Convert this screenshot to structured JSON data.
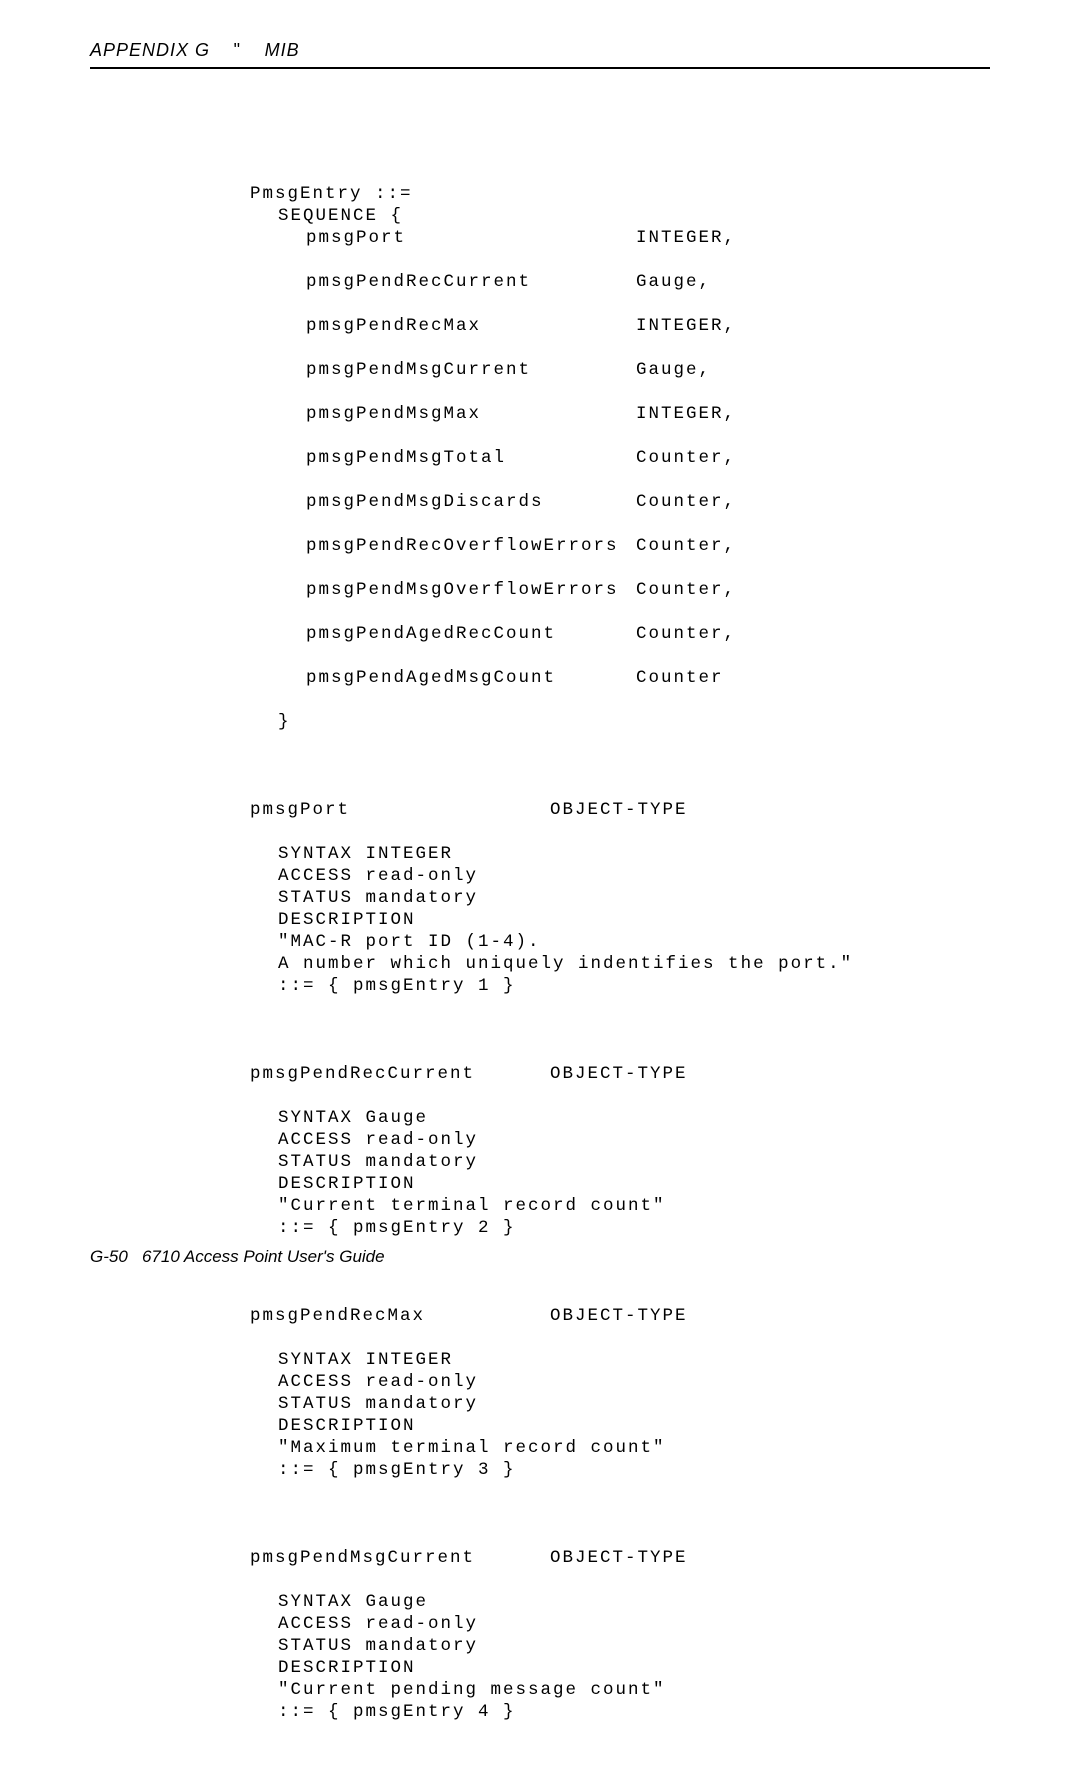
{
  "header": {
    "appendix": "APPENDIX G",
    "title": "MIB"
  },
  "seq": {
    "decl": "PmsgEntry ::=",
    "open": "SEQUENCE {",
    "rows": [
      {
        "name": "pmsgPort",
        "type": "INTEGER,"
      },
      {
        "name": "pmsgPendRecCurrent",
        "type": "Gauge,"
      },
      {
        "name": "pmsgPendRecMax",
        "type": "INTEGER,"
      },
      {
        "name": "pmsgPendMsgCurrent",
        "type": "Gauge,"
      },
      {
        "name": "pmsgPendMsgMax",
        "type": "INTEGER,"
      },
      {
        "name": "pmsgPendMsgTotal",
        "type": "Counter,"
      },
      {
        "name": "pmsgPendMsgDiscards",
        "type": "Counter,"
      },
      {
        "name": "pmsgPendRecOverflowErrors",
        "type": "Counter,"
      },
      {
        "name": "pmsgPendMsgOverflowErrors",
        "type": "Counter,"
      },
      {
        "name": "pmsgPendAgedRecCount",
        "type": "Counter,"
      },
      {
        "name": "pmsgPendAgedMsgCount",
        "type": "Counter"
      }
    ],
    "close": "}"
  },
  "objs": [
    {
      "name": "pmsgPort",
      "objtype": "OBJECT-TYPE",
      "syntax": "SYNTAX INTEGER",
      "access": "ACCESS read-only",
      "status": "STATUS mandatory",
      "descrlabel": "DESCRIPTION",
      "descr1": "\"MAC-R port ID (1-4).",
      "descr2": "A number which uniquely indentifies the port.\"",
      "assign": "::= { pmsgEntry 1 }"
    },
    {
      "name": "pmsgPendRecCurrent",
      "objtype": "OBJECT-TYPE",
      "syntax": "SYNTAX Gauge",
      "access": "ACCESS read-only",
      "status": "STATUS mandatory",
      "descrlabel": "DESCRIPTION",
      "descr1": "\"Current terminal record count\"",
      "descr2": "",
      "assign": "::= { pmsgEntry 2 }"
    },
    {
      "name": "pmsgPendRecMax",
      "objtype": "OBJECT-TYPE",
      "syntax": "SYNTAX INTEGER",
      "access": "ACCESS read-only",
      "status": "STATUS mandatory",
      "descrlabel": "DESCRIPTION",
      "descr1": "\"Maximum terminal record count\"",
      "descr2": "",
      "assign": "::= { pmsgEntry 3 }"
    },
    {
      "name": "pmsgPendMsgCurrent",
      "objtype": "OBJECT-TYPE",
      "syntax": "SYNTAX Gauge",
      "access": "ACCESS read-only",
      "status": "STATUS mandatory",
      "descrlabel": "DESCRIPTION",
      "descr1": "\"Current pending message count\"",
      "descr2": "",
      "assign": "::= { pmsgEntry 4 }"
    }
  ],
  "footer": {
    "page": "G-50",
    "title": "6710 Access Point User's Guide"
  }
}
